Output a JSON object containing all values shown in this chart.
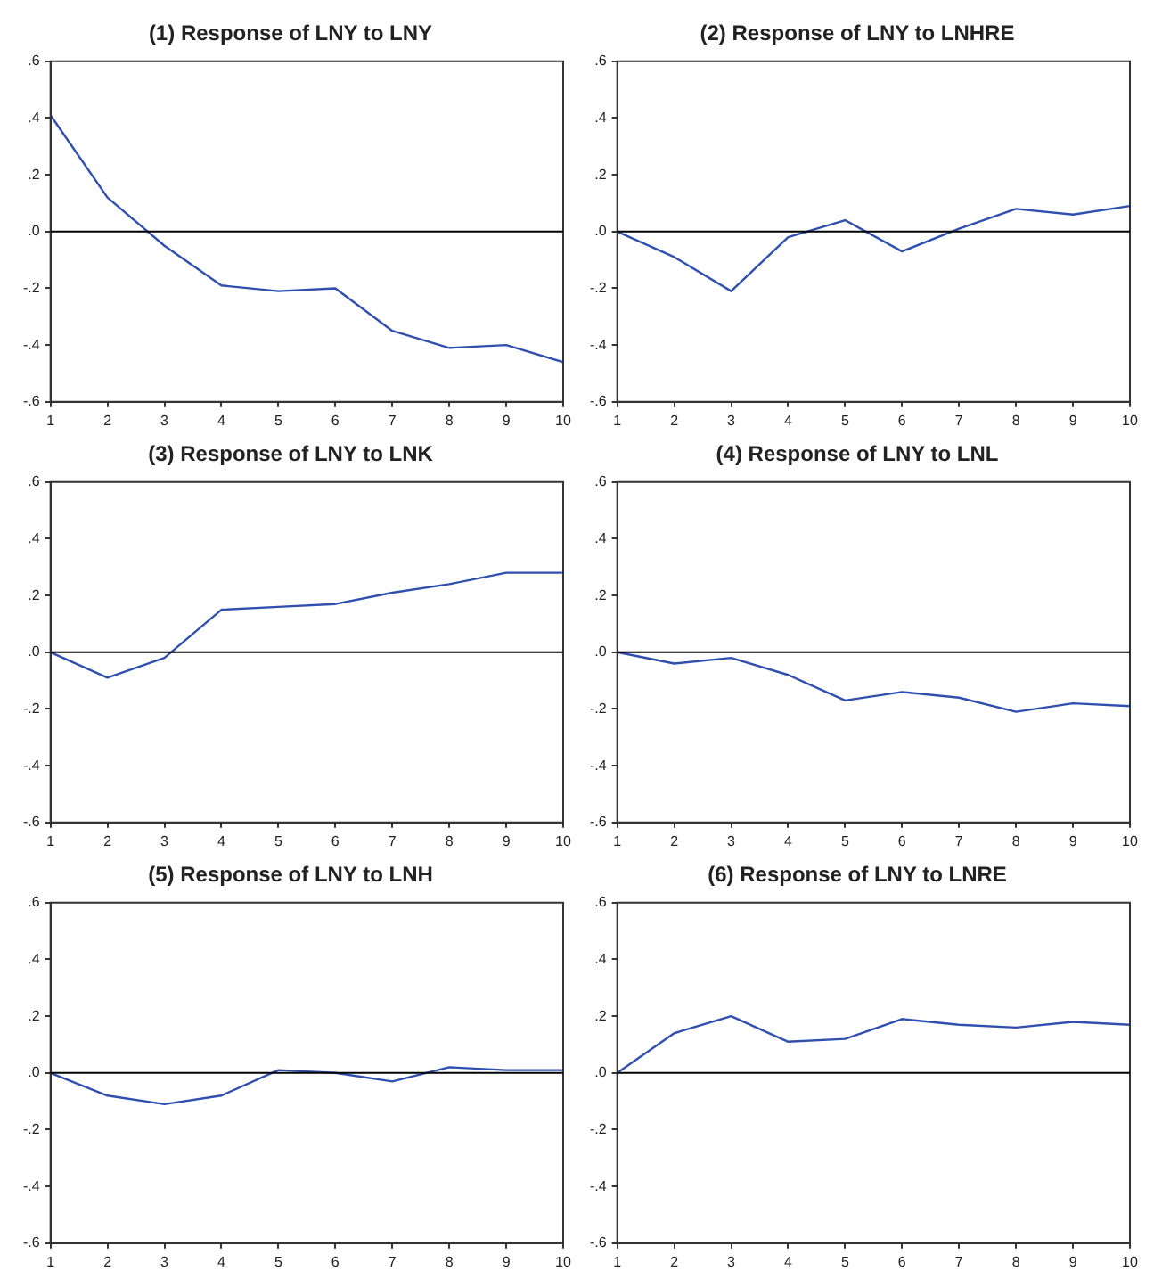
{
  "chart_data": [
    {
      "type": "line",
      "title": "(1) Response of LNY to LNY",
      "x": [
        1,
        2,
        3,
        4,
        5,
        6,
        7,
        8,
        9,
        10
      ],
      "series": [
        {
          "color": "#3050b0",
          "values": [
            0.41,
            0.12,
            -0.05,
            -0.19,
            -0.21,
            -0.2,
            -0.35,
            -0.41,
            -0.4,
            -0.46
          ]
        }
      ],
      "xlim": [
        1,
        10
      ],
      "xticks": [
        1,
        2,
        3,
        4,
        5,
        6,
        7,
        8,
        9,
        10
      ],
      "ylim": [
        -0.6,
        0.6
      ],
      "yticks": [
        {
          "value": -0.6,
          "label": "-.6"
        },
        {
          "value": -0.4,
          "label": "-.4"
        },
        {
          "value": -0.2,
          "label": "-.2"
        },
        {
          "value": 0,
          "label": ".0"
        },
        {
          "value": 0.2,
          "label": ".2"
        },
        {
          "value": 0.4,
          "label": ".4"
        },
        {
          "value": 0.6,
          "label": ".6"
        }
      ],
      "ref_lines": [
        {
          "axis": "y",
          "value": 0,
          "color": "#000000"
        }
      ],
      "grid": false,
      "legend": false,
      "marker": "none",
      "line_style": "solid"
    },
    {
      "type": "line",
      "title": "(2) Response of LNY to LNHRE",
      "x": [
        1,
        2,
        3,
        4,
        5,
        6,
        7,
        8,
        9,
        10
      ],
      "series": [
        {
          "color": "#3050b0",
          "values": [
            0,
            -0.09,
            -0.21,
            -0.02,
            0.04,
            -0.07,
            0.01,
            0.08,
            0.06,
            0.09
          ]
        }
      ],
      "xlim": [
        1,
        10
      ],
      "xticks": [
        1,
        2,
        3,
        4,
        5,
        6,
        7,
        8,
        9,
        10
      ],
      "ylim": [
        -0.6,
        0.6
      ],
      "yticks": [
        {
          "value": -0.6,
          "label": "-.6"
        },
        {
          "value": -0.4,
          "label": "-.4"
        },
        {
          "value": -0.2,
          "label": "-.2"
        },
        {
          "value": 0,
          "label": ".0"
        },
        {
          "value": 0.2,
          "label": ".2"
        },
        {
          "value": 0.4,
          "label": ".4"
        },
        {
          "value": 0.6,
          "label": ".6"
        }
      ],
      "ref_lines": [
        {
          "axis": "y",
          "value": 0,
          "color": "#000000"
        }
      ],
      "grid": false,
      "legend": false,
      "marker": "none",
      "line_style": "solid"
    },
    {
      "type": "line",
      "title": "(3) Response of LNY to LNK",
      "x": [
        1,
        2,
        3,
        4,
        5,
        6,
        7,
        8,
        9,
        10
      ],
      "series": [
        {
          "color": "#3050b0",
          "values": [
            0,
            -0.09,
            -0.02,
            0.15,
            0.16,
            0.17,
            0.21,
            0.24,
            0.28,
            0.28
          ]
        }
      ],
      "xlim": [
        1,
        10
      ],
      "xticks": [
        1,
        2,
        3,
        4,
        5,
        6,
        7,
        8,
        9,
        10
      ],
      "ylim": [
        -0.6,
        0.6
      ],
      "yticks": [
        {
          "value": -0.6,
          "label": "-.6"
        },
        {
          "value": -0.4,
          "label": "-.4"
        },
        {
          "value": -0.2,
          "label": "-.2"
        },
        {
          "value": 0,
          "label": ".0"
        },
        {
          "value": 0.2,
          "label": ".2"
        },
        {
          "value": 0.4,
          "label": ".4"
        },
        {
          "value": 0.6,
          "label": ".6"
        }
      ],
      "ref_lines": [
        {
          "axis": "y",
          "value": 0,
          "color": "#000000"
        }
      ],
      "grid": false,
      "legend": false,
      "marker": "none",
      "line_style": "solid"
    },
    {
      "type": "line",
      "title": "(4) Response of LNY to LNL",
      "x": [
        1,
        2,
        3,
        4,
        5,
        6,
        7,
        8,
        9,
        10
      ],
      "series": [
        {
          "color": "#3050b0",
          "values": [
            0,
            -0.04,
            -0.02,
            -0.08,
            -0.17,
            -0.14,
            -0.16,
            -0.21,
            -0.18,
            -0.19
          ]
        }
      ],
      "xlim": [
        1,
        10
      ],
      "xticks": [
        1,
        2,
        3,
        4,
        5,
        6,
        7,
        8,
        9,
        10
      ],
      "ylim": [
        -0.6,
        0.6
      ],
      "yticks": [
        {
          "value": -0.6,
          "label": "-.6"
        },
        {
          "value": -0.4,
          "label": "-.4"
        },
        {
          "value": -0.2,
          "label": "-.2"
        },
        {
          "value": 0,
          "label": ".0"
        },
        {
          "value": 0.2,
          "label": ".2"
        },
        {
          "value": 0.4,
          "label": ".4"
        },
        {
          "value": 0.6,
          "label": ".6"
        }
      ],
      "ref_lines": [
        {
          "axis": "y",
          "value": 0,
          "color": "#000000"
        }
      ],
      "grid": false,
      "legend": false,
      "marker": "none",
      "line_style": "solid"
    },
    {
      "type": "line",
      "title": "(5) Response of LNY to LNH",
      "x": [
        1,
        2,
        3,
        4,
        5,
        6,
        7,
        8,
        9,
        10
      ],
      "series": [
        {
          "color": "#3050b0",
          "values": [
            0,
            -0.08,
            -0.11,
            -0.08,
            0.01,
            0,
            -0.03,
            0.02,
            0.01,
            0.01
          ]
        }
      ],
      "xlim": [
        1,
        10
      ],
      "xticks": [
        1,
        2,
        3,
        4,
        5,
        6,
        7,
        8,
        9,
        10
      ],
      "ylim": [
        -0.6,
        0.6
      ],
      "yticks": [
        {
          "value": -0.6,
          "label": "-.6"
        },
        {
          "value": -0.4,
          "label": "-.4"
        },
        {
          "value": -0.2,
          "label": "-.2"
        },
        {
          "value": 0,
          "label": ".0"
        },
        {
          "value": 0.2,
          "label": ".2"
        },
        {
          "value": 0.4,
          "label": ".4"
        },
        {
          "value": 0.6,
          "label": ".6"
        }
      ],
      "ref_lines": [
        {
          "axis": "y",
          "value": 0,
          "color": "#000000"
        }
      ],
      "grid": false,
      "legend": false,
      "marker": "none",
      "line_style": "solid"
    },
    {
      "type": "line",
      "title": "(6) Response of LNY to LNRE",
      "x": [
        1,
        2,
        3,
        4,
        5,
        6,
        7,
        8,
        9,
        10
      ],
      "series": [
        {
          "color": "#3050b0",
          "values": [
            0,
            0.14,
            0.2,
            0.11,
            0.12,
            0.19,
            0.17,
            0.16,
            0.18,
            0.17
          ]
        }
      ],
      "xlim": [
        1,
        10
      ],
      "xticks": [
        1,
        2,
        3,
        4,
        5,
        6,
        7,
        8,
        9,
        10
      ],
      "ylim": [
        -0.6,
        0.6
      ],
      "yticks": [
        {
          "value": -0.6,
          "label": "-.6"
        },
        {
          "value": -0.4,
          "label": "-.4"
        },
        {
          "value": -0.2,
          "label": "-.2"
        },
        {
          "value": 0,
          "label": ".0"
        },
        {
          "value": 0.2,
          "label": ".2"
        },
        {
          "value": 0.4,
          "label": ".4"
        },
        {
          "value": 0.6,
          "label": ".6"
        }
      ],
      "ref_lines": [
        {
          "axis": "y",
          "value": 0,
          "color": "#000000"
        }
      ],
      "grid": false,
      "legend": false,
      "marker": "none",
      "line_style": "solid"
    }
  ]
}
